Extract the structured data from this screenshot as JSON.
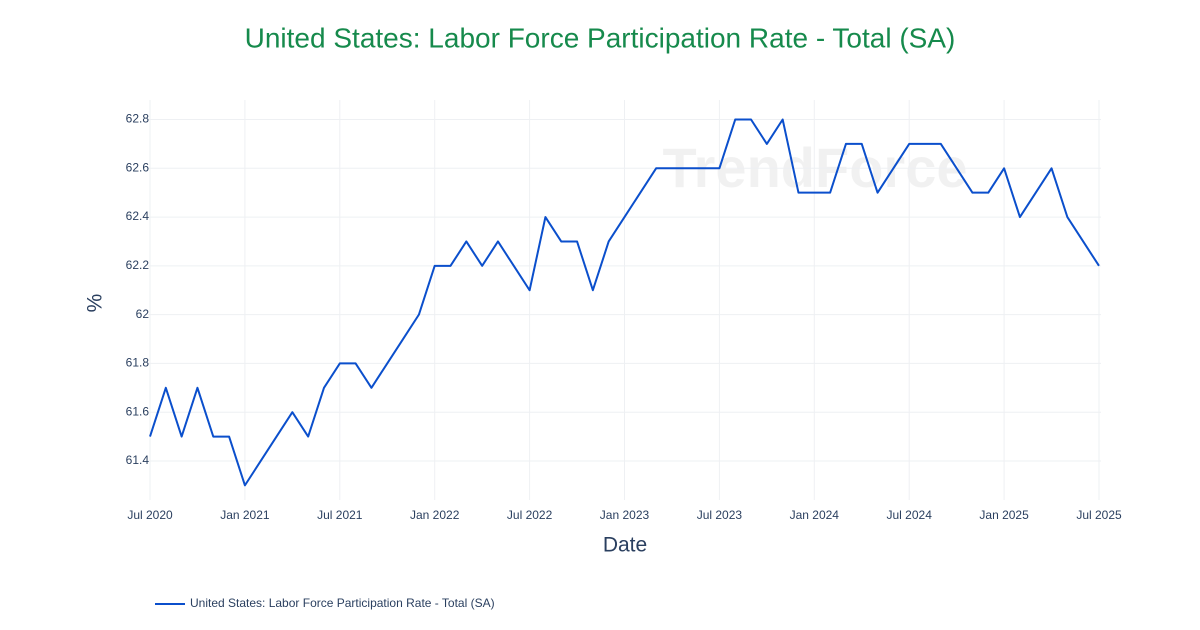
{
  "chart_data": {
    "type": "line",
    "title": "United States: Labor Force Participation Rate - Total (SA)",
    "watermark": "TrendForce",
    "x_label": "Date",
    "y_label": "%",
    "x": [
      "2020-07",
      "2020-08",
      "2020-09",
      "2020-10",
      "2020-11",
      "2020-12",
      "2021-01",
      "2021-02",
      "2021-03",
      "2021-04",
      "2021-05",
      "2021-06",
      "2021-07",
      "2021-08",
      "2021-09",
      "2021-10",
      "2021-11",
      "2021-12",
      "2022-01",
      "2022-02",
      "2022-03",
      "2022-04",
      "2022-05",
      "2022-06",
      "2022-07",
      "2022-08",
      "2022-09",
      "2022-10",
      "2022-11",
      "2022-12",
      "2023-01",
      "2023-02",
      "2023-03",
      "2023-04",
      "2023-05",
      "2023-06",
      "2023-07",
      "2023-08",
      "2023-09",
      "2023-10",
      "2023-11",
      "2023-12",
      "2024-01",
      "2024-02",
      "2024-03",
      "2024-04",
      "2024-05",
      "2024-06",
      "2024-07",
      "2024-08",
      "2024-09",
      "2024-10",
      "2024-11",
      "2024-12",
      "2025-01",
      "2025-02",
      "2025-03",
      "2025-04",
      "2025-05",
      "2025-06",
      "2025-07"
    ],
    "series": [
      {
        "name": "United States: Labor Force Participation Rate - Total (SA)",
        "color": "#0b4fcc",
        "values": [
          61.5,
          61.7,
          61.5,
          61.7,
          61.5,
          61.5,
          61.3,
          61.4,
          61.5,
          61.6,
          61.5,
          61.7,
          61.8,
          61.8,
          61.7,
          61.8,
          61.9,
          62.0,
          62.2,
          62.2,
          62.3,
          62.2,
          62.3,
          62.2,
          62.1,
          62.4,
          62.3,
          62.3,
          62.1,
          62.3,
          62.4,
          62.5,
          62.6,
          62.6,
          62.6,
          62.6,
          62.6,
          62.8,
          62.8,
          62.7,
          62.8,
          62.5,
          62.5,
          62.5,
          62.7,
          62.7,
          62.5,
          62.6,
          62.7,
          62.7,
          62.7,
          62.6,
          62.5,
          62.5,
          62.6,
          62.4,
          62.5,
          62.6,
          62.4,
          62.3,
          62.2
        ]
      }
    ],
    "xlim": [
      "2020-07",
      "2025-07"
    ],
    "xticks": [
      {
        "value": "2020-07",
        "label": "Jul 2020"
      },
      {
        "value": "2021-01",
        "label": "Jan 2021"
      },
      {
        "value": "2021-07",
        "label": "Jul 2021"
      },
      {
        "value": "2022-01",
        "label": "Jan 2022"
      },
      {
        "value": "2022-07",
        "label": "Jul 2022"
      },
      {
        "value": "2023-01",
        "label": "Jan 2023"
      },
      {
        "value": "2023-07",
        "label": "Jul 2023"
      },
      {
        "value": "2024-01",
        "label": "Jan 2024"
      },
      {
        "value": "2024-07",
        "label": "Jul 2024"
      },
      {
        "value": "2025-01",
        "label": "Jan 2025"
      },
      {
        "value": "2025-07",
        "label": "Jul 2025"
      }
    ],
    "ylim": [
      61.24,
      62.88
    ],
    "yticks": [
      61.4,
      61.6,
      61.8,
      62,
      62.2,
      62.4,
      62.6,
      62.8
    ],
    "grid": true
  }
}
